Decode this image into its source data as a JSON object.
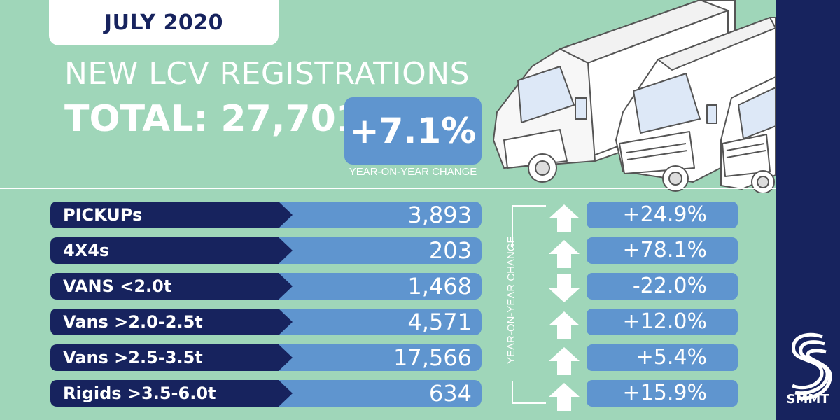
{
  "header": {
    "date": "JULY 2020",
    "headline": "NEW LCV REGISTRATIONS",
    "total_label": "TOTAL: 27,701",
    "total_change": "+7.1%",
    "total_change_label": "YEAR-ON-YEAR CHANGE"
  },
  "rows": [
    {
      "label": "PICKUPs",
      "value": "3,893",
      "change": "+24.9%",
      "direction": "up"
    },
    {
      "label": "4X4s",
      "value": "203",
      "change": "+78.1%",
      "direction": "up"
    },
    {
      "label": "VANS <2.0t",
      "value": "1,468",
      "change": "-22.0%",
      "direction": "down"
    },
    {
      "label": "Vans >2.0-2.5t",
      "value": "4,571",
      "change": "+12.0%",
      "direction": "up"
    },
    {
      "label": "Vans >2.5-3.5t",
      "value": "17,566",
      "change": "+5.4%",
      "direction": "up"
    },
    {
      "label": "Rigids >3.5-6.0t",
      "value": "634",
      "change": "+15.9%",
      "direction": "up"
    }
  ],
  "side_label": "YEAR-ON-YEAR CHANGE",
  "brand": {
    "name": "SMMT",
    "icon": "smmt-logo-icon"
  },
  "colors": {
    "background": "#9fd6b9",
    "navy": "#17235e",
    "bar_blue": "#5f95cf",
    "white": "#ffffff"
  },
  "illustration": {
    "icons": [
      "box-truck-icon",
      "panel-van-icon",
      "pickup-truck-icon"
    ]
  }
}
